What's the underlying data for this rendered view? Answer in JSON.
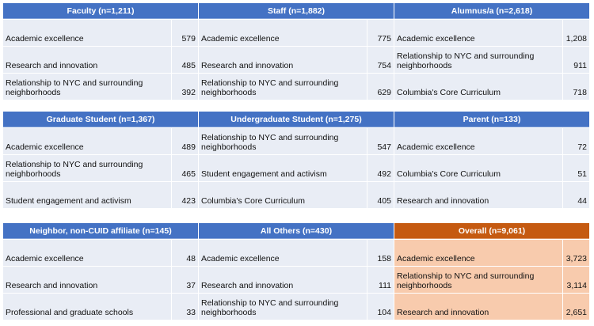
{
  "colors": {
    "header_blue": "#4472c4",
    "row_blue": "#e9edf5",
    "header_orange": "#c55a11",
    "row_orange": "#f8cbad"
  },
  "panels": [
    {
      "title": "Faculty (n=1,211)",
      "rows": [
        {
          "label": "Academic excellence",
          "value": "579"
        },
        {
          "label": "Research and innovation",
          "value": "485"
        },
        {
          "label": "Relationship to NYC and surrounding neighborhoods",
          "value": "392"
        }
      ]
    },
    {
      "title": "Staff (n=1,882)",
      "rows": [
        {
          "label": "Academic excellence",
          "value": "775"
        },
        {
          "label": "Research and innovation",
          "value": "754"
        },
        {
          "label": "Relationship to NYC and surrounding neighborhoods",
          "value": "629"
        }
      ]
    },
    {
      "title": "Alumnus/a (n=2,618)",
      "rows": [
        {
          "label": "Academic excellence",
          "value": "1,208"
        },
        {
          "label": "Relationship to NYC and surrounding neighborhoods",
          "value": "911"
        },
        {
          "label": "Columbia's Core Curriculum",
          "value": "718"
        }
      ]
    },
    {
      "title": "Graduate Student (n=1,367)",
      "rows": [
        {
          "label": "Academic excellence",
          "value": "489"
        },
        {
          "label": "Relationship to NYC and surrounding neighborhoods",
          "value": "465"
        },
        {
          "label": "Student engagement and activism",
          "value": "423"
        }
      ]
    },
    {
      "title": "Undergraduate Student (n=1,275)",
      "rows": [
        {
          "label": "Relationship to NYC and surrounding neighborhoods",
          "value": "547"
        },
        {
          "label": "Student engagement and activism",
          "value": "492"
        },
        {
          "label": "Columbia's Core Curriculum",
          "value": "405"
        }
      ]
    },
    {
      "title": "Parent (n=133)",
      "rows": [
        {
          "label": "Academic excellence",
          "value": "72"
        },
        {
          "label": "Columbia's Core Curriculum",
          "value": "51"
        },
        {
          "label": "Research and innovation",
          "value": "44"
        }
      ]
    },
    {
      "title": "Neighbor, non-CUID affiliate (n=145)",
      "rows": [
        {
          "label": "Academic excellence",
          "value": "48"
        },
        {
          "label": "Research and innovation",
          "value": "37"
        },
        {
          "label": "Professional and graduate schools",
          "value": "33"
        }
      ]
    },
    {
      "title": "All Others (n=430)",
      "rows": [
        {
          "label": "Academic excellence",
          "value": "158"
        },
        {
          "label": "Research and innovation",
          "value": "111"
        },
        {
          "label": "Relationship to NYC and surrounding neighborhoods",
          "value": "104"
        }
      ]
    },
    {
      "title": "Overall (n=9,061)",
      "rows": [
        {
          "label": "Academic excellence",
          "value": "3,723"
        },
        {
          "label": "Relationship to NYC and surrounding neighborhoods",
          "value": "3,114"
        },
        {
          "label": "Research and innovation",
          "value": "2,651"
        }
      ]
    }
  ]
}
